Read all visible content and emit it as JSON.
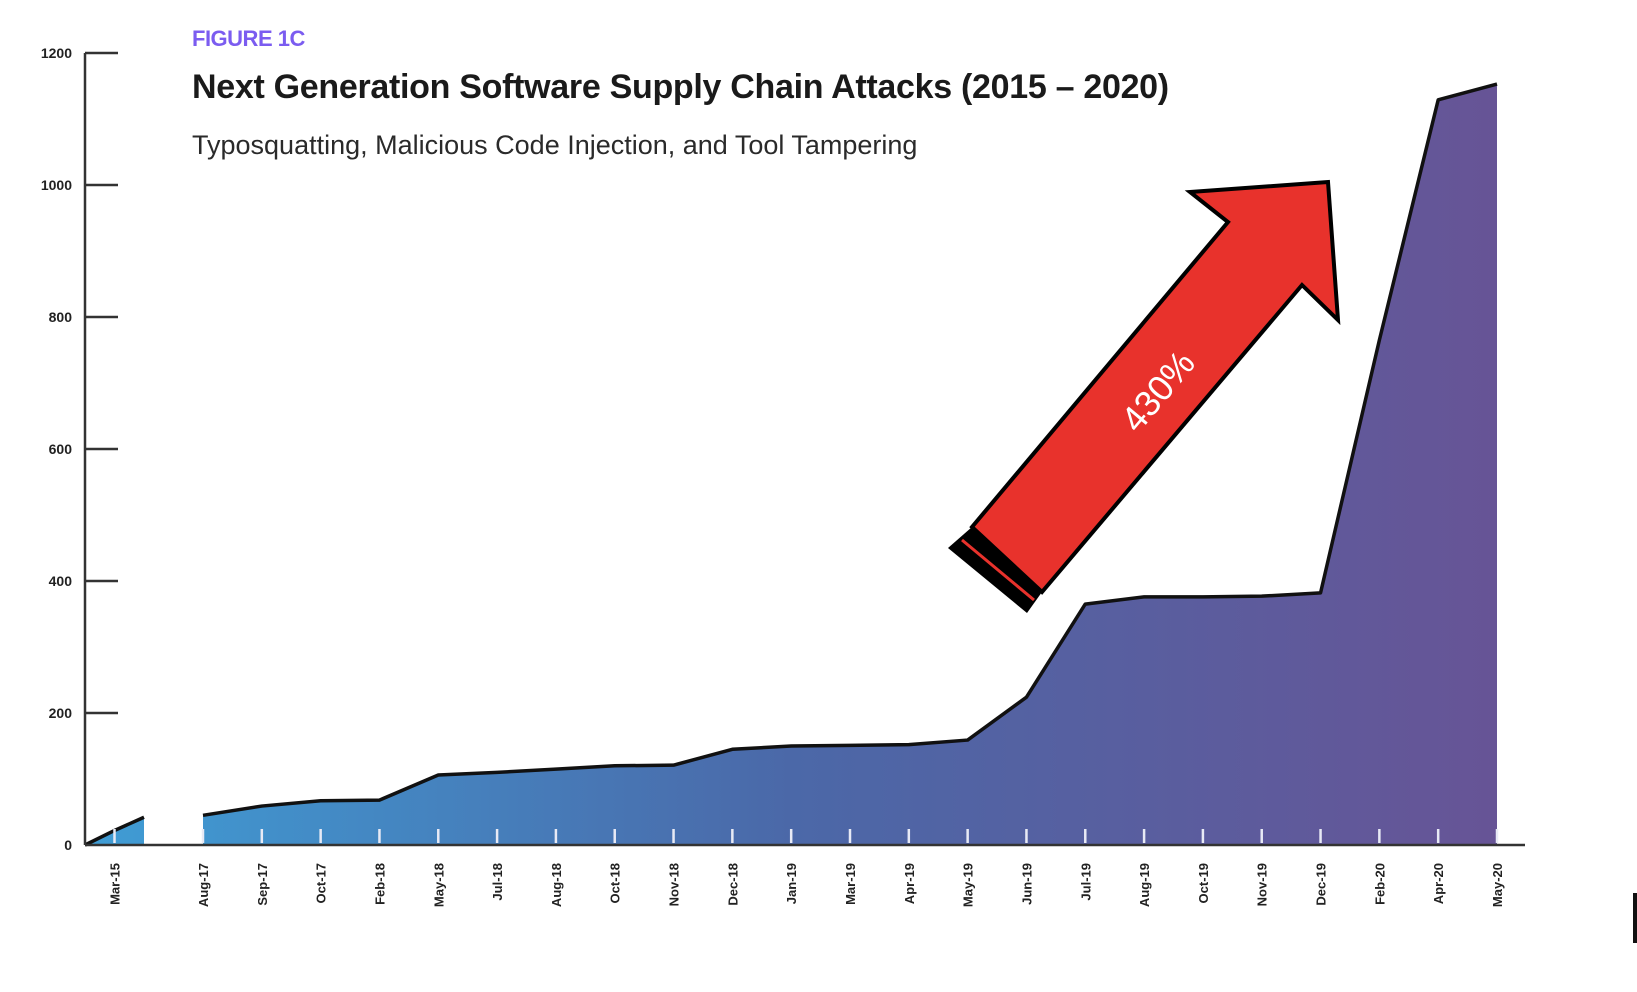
{
  "chart_data": {
    "type": "area",
    "figure_label": "FIGURE 1C",
    "title": "Next Generation Software Supply Chain Attacks (2015 – 2020)",
    "subtitle": "Typosquatting, Malicious Code Injection, and Tool Tampering",
    "xlabel": "",
    "ylabel": "",
    "ylim": [
      0,
      1200
    ],
    "yticks": [
      0,
      200,
      400,
      600,
      800,
      1000,
      1200
    ],
    "grid": false,
    "categories": [
      "",
      "Mar-15",
      "",
      "",
      "Aug-17",
      "Sep-17",
      "Oct-17",
      "Feb-18",
      "May-18",
      "Jul-18",
      "Aug-18",
      "Oct-18",
      "Nov-18",
      "Dec-18",
      "Jan-19",
      "Mar-19",
      "Apr-19",
      "May-19",
      "Jun-19",
      "Jul-19",
      "Aug-19",
      "Oct-19",
      "Nov-19",
      "Dec-19",
      "Feb-20",
      "Apr-20",
      "May-20"
    ],
    "values": [
      0,
      22,
      42,
      null,
      45,
      59,
      67,
      68,
      106,
      110,
      115,
      120,
      121,
      145,
      150,
      151,
      152,
      159,
      224,
      365,
      376,
      376,
      377,
      382,
      765,
      1129,
      1153
    ],
    "annotation": {
      "text": "430%",
      "color": "#e8322c"
    },
    "colors": {
      "gradient_start": "#3f9dd5",
      "gradient_end": "#675496",
      "line": "#111111"
    }
  }
}
